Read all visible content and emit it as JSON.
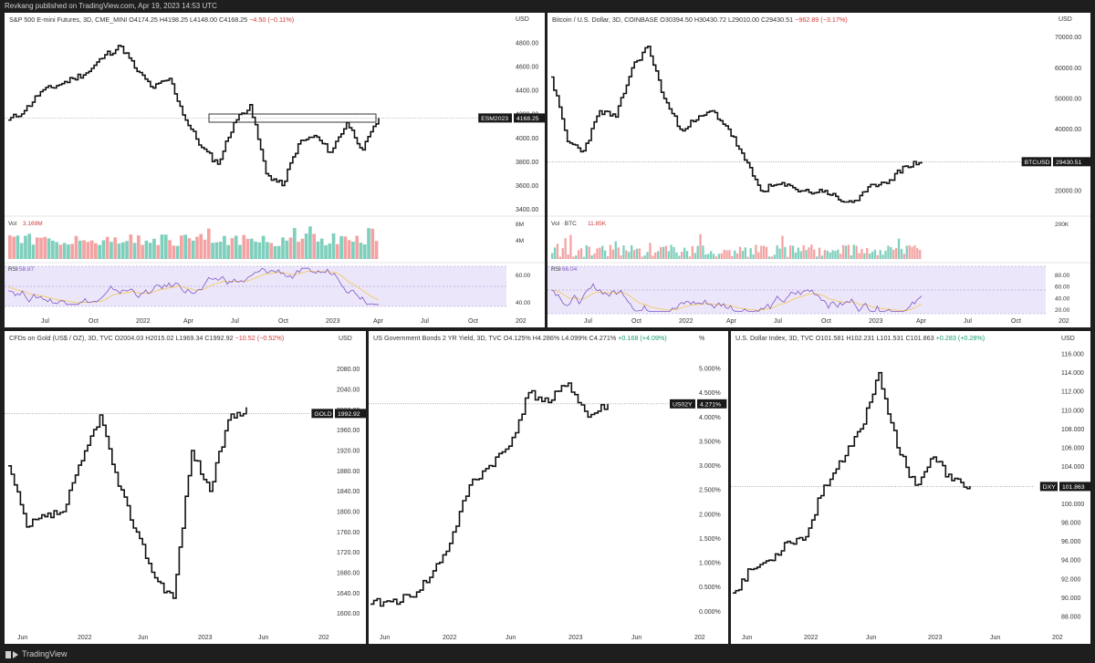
{
  "header": {
    "text": "Revkang published on TradingView.com, Apr 19, 2023 14:53 UTC"
  },
  "footer": {
    "brand": "TradingView",
    "logo_icon": "tradingview-logo-icon"
  },
  "charts": [
    {
      "id": "spx",
      "title": "S&P 500 E-mini Futures, 3D, CME_MINI",
      "ohlc": "O4174.25 H4198.25 L4148.00 C4168.25",
      "change": "−4.50 (−0.11%)",
      "change_dir": "down",
      "currency": "USD",
      "ticker": "ESM2023",
      "last_price": "4168.25",
      "last": 4168.25,
      "y_ticks": [
        "4800.00",
        "4600.00",
        "4400.00",
        "4200.00",
        "4000.00",
        "3800.00",
        "3600.00",
        "3400.00"
      ],
      "x_labels": [
        "Jul",
        "Oct",
        "2022",
        "Apr",
        "Jul",
        "Oct",
        "2023",
        "Apr",
        "Jul",
        "Oct",
        "202"
      ],
      "volume": {
        "label": "Vol",
        "value": "3.169M",
        "ticks": [
          "8M",
          "4M"
        ]
      },
      "rsi": {
        "label": "RSI",
        "value": "58.87",
        "ticks": [
          "60.00",
          "40.00"
        ]
      },
      "chart_data": {
        "type": "line",
        "ylim": [
          3350,
          4900
        ],
        "x": [
          "2021-05",
          "2021-06",
          "2021-07",
          "2021-08",
          "2021-09",
          "2021-10",
          "2021-11",
          "2021-12",
          "2022-01",
          "2022-02",
          "2022-03",
          "2022-04",
          "2022-05",
          "2022-06",
          "2022-07",
          "2022-08",
          "2022-09",
          "2022-10",
          "2022-11",
          "2022-12",
          "2023-01",
          "2023-02",
          "2023-03",
          "2023-04"
        ],
        "values": [
          4150,
          4230,
          4390,
          4440,
          4500,
          4560,
          4700,
          4770,
          4560,
          4420,
          4500,
          4150,
          3920,
          3780,
          4130,
          4280,
          3700,
          3600,
          3950,
          4020,
          3880,
          4130,
          3900,
          4168
        ]
      }
    },
    {
      "id": "btc",
      "title": "Bitcoin / U.S. Dollar, 3D, COINBASE",
      "ohlc": "O30394.50 H30430.72 L29010.00 C29430.51",
      "change": "−962.89 (−3.17%)",
      "change_dir": "down",
      "currency": "USD",
      "ticker": "BTCUSD",
      "last_price": "29430.51",
      "last": 29430.51,
      "y_ticks": [
        "70000.00",
        "60000.00",
        "50000.00",
        "40000.00",
        "30000.00",
        "20000.00"
      ],
      "x_labels": [
        "Jul",
        "Oct",
        "2022",
        "Apr",
        "Jul",
        "Oct",
        "2023",
        "Apr",
        "Jul",
        "Oct",
        "202"
      ],
      "volume": {
        "label": "Vol · BTC",
        "value": "11.85K",
        "ticks": [
          "200K"
        ]
      },
      "rsi": {
        "label": "RSI",
        "value": "66.04",
        "ticks": [
          "80.00",
          "60.00",
          "40.00",
          "20.00"
        ]
      },
      "chart_data": {
        "type": "line",
        "ylim": [
          12000,
          72000
        ],
        "x": [
          "2021-05",
          "2021-06",
          "2021-07",
          "2021-08",
          "2021-09",
          "2021-10",
          "2021-11",
          "2021-12",
          "2022-01",
          "2022-02",
          "2022-03",
          "2022-04",
          "2022-05",
          "2022-06",
          "2022-07",
          "2022-08",
          "2022-09",
          "2022-10",
          "2022-11",
          "2022-12",
          "2023-01",
          "2023-02",
          "2023-03",
          "2023-04"
        ],
        "values": [
          57000,
          36000,
          33000,
          46000,
          44000,
          60000,
          67000,
          50000,
          40000,
          43000,
          46000,
          40000,
          30000,
          20000,
          22000,
          21000,
          19500,
          20000,
          16500,
          16800,
          22000,
          23500,
          28000,
          29430
        ]
      }
    },
    {
      "id": "gold",
      "title": "CFDs on Gold (US$ / OZ), 3D, TVC",
      "ohlc": "O2004.03 H2015.02 L1969.34 C1992.92",
      "change": "−10.52 (−0.52%)",
      "change_dir": "down",
      "currency": "USD",
      "ticker": "GOLD",
      "last_price": "1992.92",
      "last": 1992.92,
      "y_ticks": [
        "2080.00",
        "2040.00",
        "2000.00",
        "1960.00",
        "1920.00",
        "1880.00",
        "1840.00",
        "1800.00",
        "1760.00",
        "1720.00",
        "1680.00",
        "1640.00",
        "1600.00"
      ],
      "x_labels": [
        "Jun",
        "2022",
        "Jun",
        "2023",
        "Jun",
        "202"
      ],
      "chart_data": {
        "type": "line",
        "ylim": [
          1585,
          2110
        ],
        "x": [
          "2021-06",
          "2021-08",
          "2021-10",
          "2021-12",
          "2022-02",
          "2022-03",
          "2022-05",
          "2022-07",
          "2022-09",
          "2022-11",
          "2023-01",
          "2023-02",
          "2023-03",
          "2023-04"
        ],
        "values": [
          1890,
          1770,
          1790,
          1800,
          1900,
          1990,
          1850,
          1760,
          1670,
          1630,
          1920,
          1840,
          1980,
          2005
        ]
      }
    },
    {
      "id": "us02y",
      "title": "US Government Bonds 2 YR Yield, 3D, TVC",
      "ohlc": "O4.125% H4.286% L4.099% C4.271%",
      "change": "+0.168 (+4.09%)",
      "change_dir": "up",
      "currency": "%",
      "ticker": "US02Y",
      "last_price": "4.271%",
      "last": 4.271,
      "y_ticks": [
        "5.000%",
        "4.500%",
        "4.000%",
        "3.500%",
        "3.000%",
        "2.500%",
        "2.000%",
        "1.500%",
        "1.000%",
        "0.500%",
        "0.000%"
      ],
      "x_labels": [
        "Jun",
        "2022",
        "Jun",
        "2023",
        "Jun",
        "202"
      ],
      "chart_data": {
        "type": "line",
        "ylim": [
          -0.2,
          5.3
        ],
        "x": [
          "2021-06",
          "2021-08",
          "2021-10",
          "2021-12",
          "2022-02",
          "2022-04",
          "2022-06",
          "2022-08",
          "2022-10",
          "2022-12",
          "2023-02",
          "2023-03",
          "2023-04"
        ],
        "values": [
          0.15,
          0.2,
          0.3,
          0.7,
          1.4,
          2.6,
          3.0,
          3.4,
          4.5,
          4.3,
          4.7,
          4.0,
          4.27
        ]
      }
    },
    {
      "id": "dxy",
      "title": "U.S. Dollar Index, 3D, TVC",
      "ohlc": "O101.581 H102.231 L101.531 C101.863",
      "change": "+0.283 (+0.28%)",
      "change_dir": "up",
      "currency": "USD",
      "ticker": "DXY",
      "last_price": "101.863",
      "last": 101.863,
      "y_ticks": [
        "116.000",
        "114.000",
        "112.000",
        "110.000",
        "108.000",
        "106.000",
        "104.000",
        "102.000",
        "100.000",
        "98.000",
        "96.000",
        "94.000",
        "92.000",
        "90.000",
        "88.000"
      ],
      "x_labels": [
        "Jun",
        "2022",
        "Jun",
        "2023",
        "Jun",
        "202"
      ],
      "chart_data": {
        "type": "line",
        "ylim": [
          87.5,
          116.5
        ],
        "x": [
          "2021-06",
          "2021-08",
          "2021-10",
          "2021-12",
          "2022-02",
          "2022-04",
          "2022-06",
          "2022-08",
          "2022-10",
          "2022-11",
          "2023-01",
          "2023-02",
          "2023-03",
          "2023-04"
        ],
        "values": [
          90.5,
          93,
          94,
          96,
          96.5,
          102,
          104.5,
          108,
          114,
          106,
          102,
          105,
          102.5,
          101.9
        ]
      }
    }
  ]
}
